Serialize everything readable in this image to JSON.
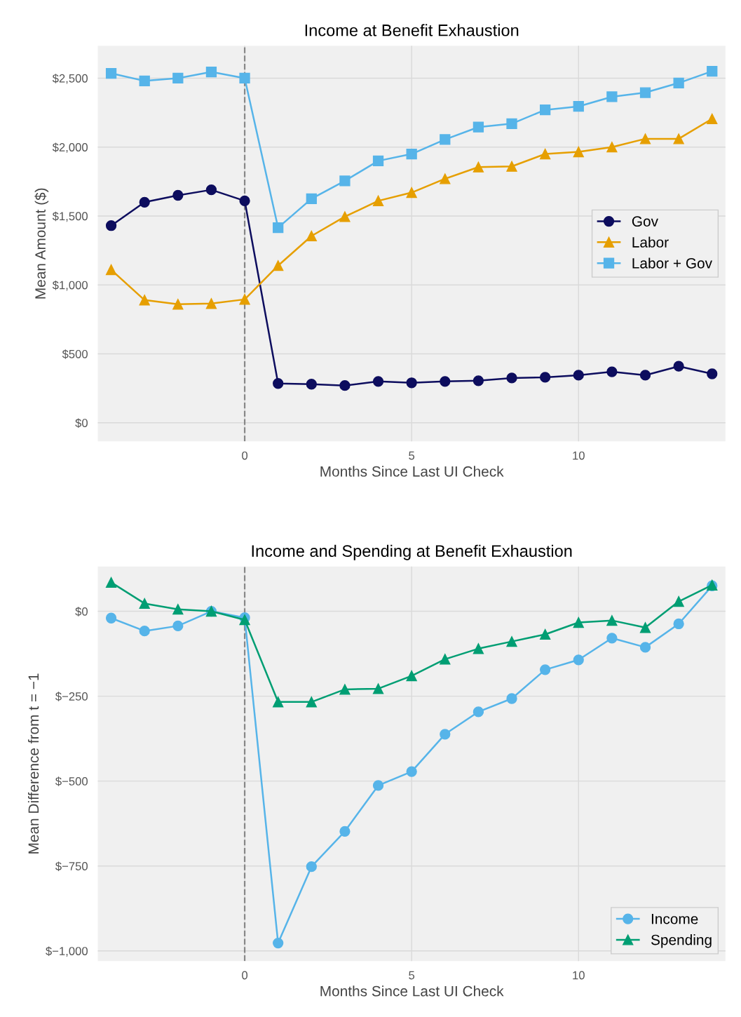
{
  "chart_data": [
    {
      "type": "line",
      "title": "Income at Benefit Exhaustion",
      "xlabel": "Months Since Last UI Check",
      "ylabel": "Mean Amount ($)",
      "x": [
        -4,
        -3,
        -2,
        -1,
        0,
        1,
        2,
        3,
        4,
        5,
        6,
        7,
        8,
        9,
        10,
        11,
        12,
        13,
        14
      ],
      "series": [
        {
          "name": "Gov",
          "color": "#0d0d5e",
          "marker": "circle",
          "values": [
            1430,
            1600,
            1650,
            1690,
            1610,
            285,
            280,
            270,
            300,
            290,
            300,
            305,
            325,
            330,
            345,
            370,
            345,
            410,
            355
          ]
        },
        {
          "name": "Labor",
          "color": "#e69f00",
          "marker": "triangle",
          "values": [
            1110,
            890,
            860,
            865,
            895,
            1140,
            1355,
            1495,
            1610,
            1670,
            1770,
            1855,
            1860,
            1950,
            1965,
            2000,
            2060,
            2060,
            2205
          ]
        },
        {
          "name": "Labor + Gov",
          "color": "#56b4e9",
          "marker": "square",
          "values": [
            2535,
            2480,
            2500,
            2545,
            2500,
            1415,
            1625,
            1755,
            1900,
            1950,
            2055,
            2145,
            2170,
            2270,
            2295,
            2365,
            2395,
            2465,
            2550
          ]
        }
      ],
      "xlim": [
        -4.4,
        14.4
      ],
      "xticks": [
        0,
        5,
        10
      ],
      "ylim": [
        -135,
        2735
      ],
      "yticks": [
        {
          "value": 0,
          "label": "$0"
        },
        {
          "value": 500,
          "label": "$500"
        },
        {
          "value": 1000,
          "label": "$1,000"
        },
        {
          "value": 1500,
          "label": "$1,500"
        },
        {
          "value": 2000,
          "label": "$2,000"
        },
        {
          "value": 2500,
          "label": "$2,500"
        }
      ],
      "ref_lines": [
        {
          "axis": "x",
          "value": 0,
          "color": "#888888",
          "line_style": "dashed"
        }
      ],
      "grid": true,
      "legend": "right",
      "line_style": "solid"
    },
    {
      "type": "line",
      "title": "Income and Spending at Benefit Exhaustion",
      "xlabel": "Months Since Last UI Check",
      "ylabel": "Mean Difference from t = −1",
      "x": [
        -4,
        -3,
        -2,
        -1,
        0,
        1,
        2,
        3,
        4,
        5,
        6,
        7,
        8,
        9,
        10,
        11,
        12,
        13,
        14
      ],
      "series": [
        {
          "name": "Income",
          "color": "#56b4e9",
          "marker": "circle",
          "values": [
            -20,
            -58,
            -43,
            0,
            -19,
            -977,
            -752,
            -648,
            -513,
            -472,
            -362,
            -296,
            -257,
            -172,
            -143,
            -79,
            -106,
            -37,
            75
          ]
        },
        {
          "name": "Spending",
          "color": "#009e73",
          "marker": "triangle",
          "values": [
            85,
            23,
            6,
            0,
            -25,
            -267,
            -267,
            -230,
            -228,
            -190,
            -141,
            -110,
            -89,
            -68,
            -33,
            -27,
            -48,
            29,
            77
          ]
        }
      ],
      "xlim": [
        -4.4,
        14.4
      ],
      "xticks": [
        0,
        5,
        10
      ],
      "ylim": [
        -1030,
        132
      ],
      "yticks": [
        {
          "value": -1000,
          "label": "$−1,000"
        },
        {
          "value": -750,
          "label": "$−750"
        },
        {
          "value": -500,
          "label": "$−500"
        },
        {
          "value": -250,
          "label": "$−250"
        },
        {
          "value": 0,
          "label": "$0"
        }
      ],
      "ref_lines": [
        {
          "axis": "x",
          "value": 0,
          "color": "#888888",
          "line_style": "dashed"
        }
      ],
      "grid": true,
      "legend": "bottom right",
      "line_style": "solid"
    }
  ]
}
